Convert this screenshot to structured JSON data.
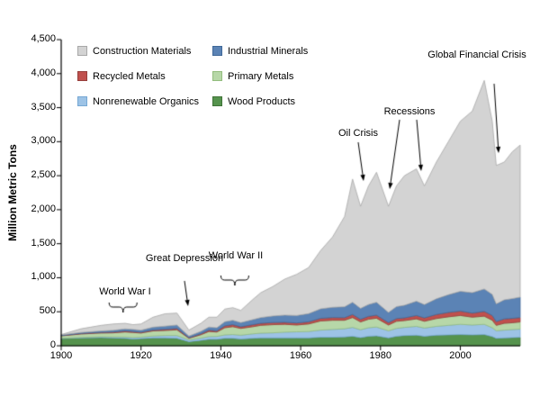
{
  "chart_data": {
    "type": "area",
    "stacked": true,
    "title": "",
    "xlabel": "",
    "ylabel": "Million Metric Tons",
    "xlim": [
      1900,
      2015
    ],
    "ylim": [
      0,
      4500
    ],
    "grid": false,
    "legend_position": "top-left-inside",
    "x": [
      1900,
      1905,
      1910,
      1913,
      1916,
      1918,
      1920,
      1923,
      1926,
      1929,
      1932,
      1935,
      1937,
      1939,
      1941,
      1943,
      1945,
      1948,
      1950,
      1953,
      1956,
      1959,
      1962,
      1965,
      1968,
      1971,
      1973,
      1975,
      1977,
      1979,
      1982,
      1984,
      1986,
      1989,
      1991,
      1994,
      1997,
      2000,
      2003,
      2006,
      2008,
      2009,
      2011,
      2013,
      2015
    ],
    "series": [
      {
        "name": "Wood Products",
        "color": "#55934d",
        "border": "#3f7337",
        "values": [
          105,
          115,
          120,
          115,
          110,
          100,
          105,
          115,
          115,
          110,
          60,
          80,
          95,
          95,
          110,
          110,
          100,
          110,
          115,
          115,
          115,
          115,
          115,
          125,
          125,
          130,
          140,
          120,
          140,
          145,
          115,
          140,
          150,
          155,
          140,
          155,
          160,
          165,
          160,
          165,
          135,
          110,
          115,
          120,
          125
        ]
      },
      {
        "name": "Nonrenewable Organics",
        "color": "#9dc3e6",
        "border": "#76a8d4",
        "values": [
          5,
          8,
          12,
          15,
          18,
          20,
          22,
          28,
          35,
          40,
          25,
          32,
          40,
          42,
          50,
          55,
          55,
          65,
          70,
          75,
          85,
          90,
          95,
          105,
          115,
          120,
          130,
          115,
          125,
          130,
          105,
          115,
          120,
          130,
          120,
          130,
          140,
          150,
          145,
          150,
          130,
          110,
          115,
          118,
          120
        ]
      },
      {
        "name": "Primary Metals",
        "color": "#b7d7a8",
        "border": "#93bd7e",
        "values": [
          35,
          50,
          55,
          60,
          75,
          75,
          60,
          75,
          75,
          85,
          25,
          50,
          75,
          65,
          105,
          115,
          100,
          105,
          115,
          120,
          115,
          100,
          110,
          135,
          135,
          125,
          145,
          115,
          125,
          130,
          85,
          105,
          100,
          110,
          100,
          115,
          125,
          130,
          115,
          120,
          110,
          80,
          100,
          100,
          105
        ]
      },
      {
        "name": "Recycled Metals",
        "color": "#c0504d",
        "border": "#963f3c",
        "values": [
          5,
          8,
          10,
          12,
          15,
          15,
          12,
          15,
          18,
          20,
          8,
          15,
          20,
          18,
          28,
          30,
          25,
          30,
          30,
          32,
          30,
          30,
          32,
          38,
          40,
          38,
          45,
          40,
          42,
          45,
          35,
          40,
          40,
          50,
          50,
          60,
          65,
          65,
          60,
          70,
          70,
          55,
          65,
          65,
          65
        ]
      },
      {
        "name": "Industrial Minerals",
        "color": "#5b83b5",
        "border": "#3f6898",
        "values": [
          10,
          15,
          20,
          25,
          30,
          30,
          30,
          40,
          45,
          50,
          25,
          35,
          45,
          45,
          60,
          65,
          60,
          75,
          85,
          95,
          105,
          110,
          120,
          140,
          150,
          160,
          180,
          160,
          175,
          190,
          150,
          175,
          185,
          210,
          195,
          230,
          260,
          290,
          300,
          330,
          310,
          260,
          280,
          290,
          300
        ]
      },
      {
        "name": "Construction Materials",
        "color": "#d3d3d3",
        "border": "#a8a8a8",
        "values": [
          5,
          54,
          83,
          93,
          82,
          70,
          91,
          147,
          182,
          175,
          87,
          118,
          145,
          155,
          187,
          185,
          180,
          295,
          365,
          433,
          530,
          605,
          678,
          857,
          1035,
          1327,
          1810,
          1500,
          1743,
          1910,
          1560,
          1775,
          1905,
          1945,
          1745,
          2010,
          2250,
          2500,
          2670,
          3065,
          2545,
          2035,
          2025,
          2157,
          2235
        ]
      }
    ],
    "x_ticks": [
      1900,
      1920,
      1940,
      1960,
      1980,
      2000
    ],
    "y_ticks": [
      {
        "v": 0,
        "label": "0"
      },
      {
        "v": 500,
        "label": "500"
      },
      {
        "v": 1000,
        "label": "1,000"
      },
      {
        "v": 1500,
        "label": "1,500"
      },
      {
        "v": 2000,
        "label": "2,000"
      },
      {
        "v": 2500,
        "label": "2,500"
      },
      {
        "v": 3000,
        "label": "3,000"
      },
      {
        "v": 3500,
        "label": "3,500"
      },
      {
        "v": 4000,
        "label": "4,000"
      },
      {
        "v": 4500,
        "label": "4,500"
      }
    ],
    "legend": [
      {
        "label": "Construction Materials",
        "color": "#d3d3d3",
        "border": "#a8a8a8"
      },
      {
        "label": "Industrial Minerals",
        "color": "#5b83b5",
        "border": "#3f6898"
      },
      {
        "label": "Recycled Metals",
        "color": "#c0504d",
        "border": "#963f3c"
      },
      {
        "label": "Primary Metals",
        "color": "#b7d7a8",
        "border": "#93bd7e"
      },
      {
        "label": "Nonrenewable Organics",
        "color": "#9dc3e6",
        "border": "#76a8d4"
      },
      {
        "label": "Wood Products",
        "color": "#55934d",
        "border": "#3f7337"
      }
    ],
    "annotations": [
      {
        "id": "world-war-1",
        "text": "World War I"
      },
      {
        "id": "great-depression",
        "text": "Great Depression"
      },
      {
        "id": "world-war-2",
        "text": "World War II"
      },
      {
        "id": "oil-crisis",
        "text": "Oil Crisis"
      },
      {
        "id": "recessions",
        "text": "Recessions"
      },
      {
        "id": "global-financial-crisis",
        "text": "Global Financial Crisis"
      }
    ]
  }
}
